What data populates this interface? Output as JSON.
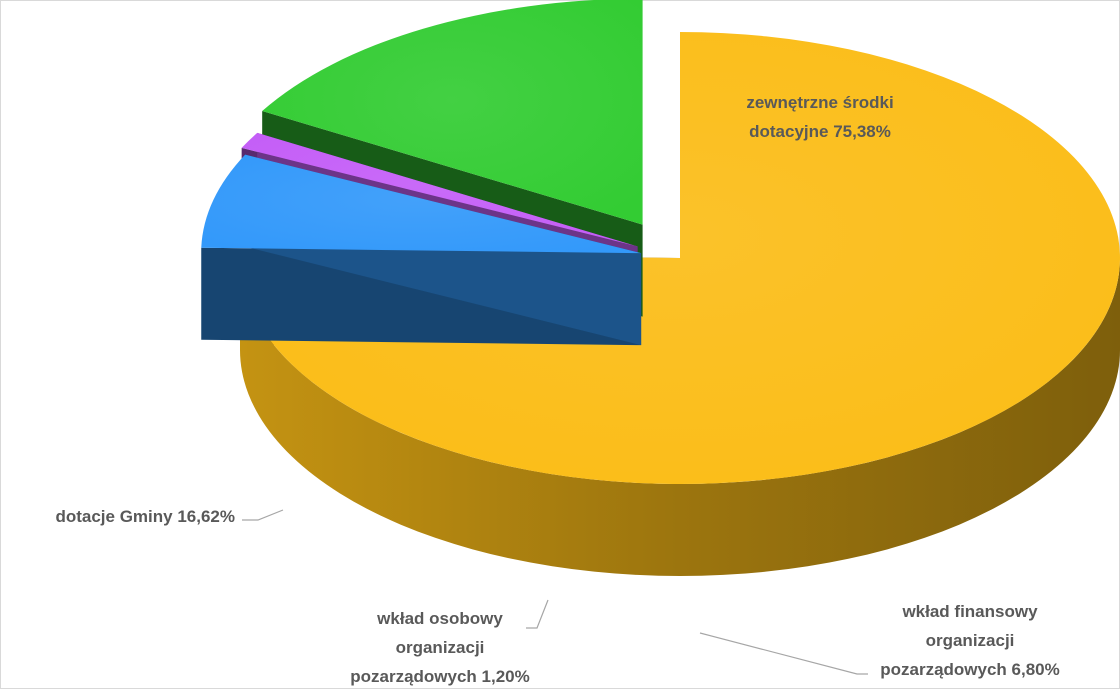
{
  "chart_data": {
    "type": "pie",
    "title": "",
    "slices": [
      {
        "label": "zewnętrzne środki dotacyjne",
        "value": 75.38,
        "color": "#fbbd17",
        "data_label": [
          "zewnętrzne środki",
          "dotacyjne 75,38%"
        ]
      },
      {
        "label": "wkład finansowy organizacji pozarządowych",
        "value": 6.8,
        "color": "#3399fa",
        "data_label": [
          "wkład finansowy",
          "organizacji",
          "pozarządowych 6,80%"
        ]
      },
      {
        "label": "wkład osobowy organizacji pozarządowych",
        "value": 1.2,
        "color": "#c45ef7",
        "data_label": [
          "wkład osobowy",
          "organizacji",
          "pozarządowych 1,20%"
        ]
      },
      {
        "label": "dotacje Gminy",
        "value": 16.62,
        "color": "#33cc33",
        "data_label": [
          "dotacje Gminy 16,62%"
        ]
      }
    ],
    "style": "3d-exploded",
    "legend": "none"
  }
}
